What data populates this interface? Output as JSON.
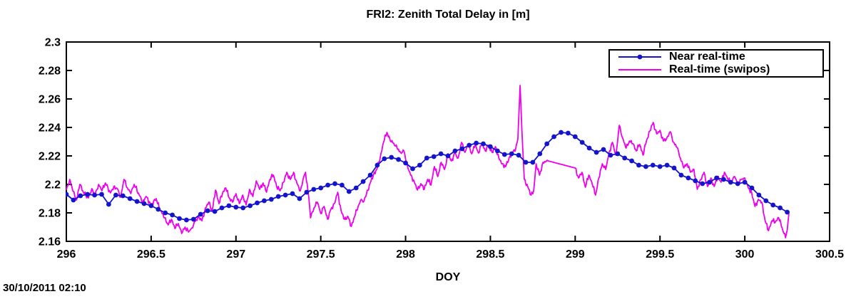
{
  "figure": {
    "background": "#ffffff",
    "axis_color": "#000000",
    "timestamp": "30/10/2011 02:10"
  },
  "chart_data": {
    "type": "line",
    "title": "FRI2: Zenith Total Delay in [m]",
    "xlabel": "DOY",
    "ylabel": "",
    "xlim": [
      296,
      300.5
    ],
    "ylim": [
      2.16,
      2.3
    ],
    "grid": false,
    "legend_position": "top-right",
    "xticks": {
      "values": [
        296,
        296.5,
        297,
        297.5,
        298,
        298.5,
        299,
        299.5,
        300,
        300.5
      ],
      "labels": [
        "296",
        "296.5",
        "297",
        "297.5",
        "298",
        "298.5",
        "299",
        "299.5",
        "300",
        "300.5"
      ]
    },
    "yticks": {
      "values": [
        2.16,
        2.18,
        2.2,
        2.22,
        2.24,
        2.26,
        2.28,
        2.3
      ],
      "labels": [
        "2.16",
        "2.18",
        "2.2",
        "2.22",
        "2.24",
        "2.26",
        "2.28",
        "2.3"
      ]
    },
    "series": [
      {
        "name": "Near real-time",
        "color": "#1414cc",
        "marker": "circle",
        "marker_radius": 3.4,
        "line_width": 1.8,
        "x_start": 296.0,
        "x_step": 0.0416667,
        "values": [
          2.193,
          2.189,
          2.192,
          2.193,
          2.1925,
          2.193,
          2.186,
          2.1925,
          2.192,
          2.19,
          2.188,
          2.1865,
          2.185,
          2.1825,
          2.18,
          2.1785,
          2.176,
          2.175,
          2.1755,
          2.179,
          2.1815,
          2.181,
          2.1835,
          2.185,
          2.184,
          2.1835,
          2.185,
          2.187,
          2.1885,
          2.1895,
          2.1915,
          2.1925,
          2.1935,
          2.19,
          2.1945,
          2.1965,
          2.1975,
          2.1995,
          2.2005,
          2.1995,
          2.195,
          2.1975,
          2.202,
          2.2065,
          2.2135,
          2.218,
          2.219,
          2.2175,
          2.215,
          2.211,
          2.2135,
          2.2185,
          2.2195,
          2.2215,
          2.22,
          2.2235,
          2.225,
          2.2275,
          2.229,
          2.2285,
          2.2265,
          2.2235,
          2.221,
          2.2215,
          2.2205,
          2.2155,
          2.2155,
          2.2215,
          2.2285,
          2.2335,
          2.2365,
          2.236,
          2.2335,
          2.2295,
          2.2255,
          2.2225,
          2.2245,
          2.2205,
          2.2215,
          2.2185,
          2.2165,
          2.2135,
          2.2125,
          2.2135,
          2.2125,
          2.2135,
          2.2115,
          2.2065,
          2.2045,
          2.2025,
          2.2005,
          2.2015,
          2.2045,
          2.2035,
          2.2015,
          2.2005,
          2.2015,
          2.1975,
          2.1925,
          2.1885,
          2.1855,
          2.1835,
          2.1805
        ]
      },
      {
        "name": "Real-time (swipos)",
        "color": "#ee00ee",
        "marker": "none",
        "line_width": 1.8,
        "noise": {
          "amplitude": 0.002,
          "f1": 480,
          "f2": 291,
          "phase2": 1.3,
          "step": 0.005,
          "min_seg": 0.012
        },
        "gap_segments": [
          [
            298.84,
            299.0
          ]
        ],
        "points": [
          [
            296.0,
            2.196
          ],
          [
            296.02,
            2.2035
          ],
          [
            296.04,
            2.195
          ],
          [
            296.06,
            2.189
          ],
          [
            296.08,
            2.2
          ],
          [
            296.1,
            2.1945
          ],
          [
            296.13,
            2.1905
          ],
          [
            296.15,
            2.197
          ],
          [
            296.17,
            2.1925
          ],
          [
            296.19,
            2.2
          ],
          [
            296.21,
            2.1955
          ],
          [
            296.23,
            2.201
          ],
          [
            296.26,
            2.194
          ],
          [
            296.28,
            2.1985
          ],
          [
            296.3,
            2.197
          ],
          [
            296.32,
            2.191
          ],
          [
            296.34,
            2.2035
          ],
          [
            296.36,
            2.1975
          ],
          [
            296.38,
            2.1935
          ],
          [
            296.4,
            2.2
          ],
          [
            296.43,
            2.1925
          ],
          [
            296.45,
            2.1875
          ],
          [
            296.47,
            2.1915
          ],
          [
            296.5,
            2.1855
          ],
          [
            296.53,
            2.19
          ],
          [
            296.55,
            2.1825
          ],
          [
            296.58,
            2.1765
          ],
          [
            296.6,
            2.1715
          ],
          [
            296.62,
            2.1755
          ],
          [
            296.64,
            2.169
          ],
          [
            296.66,
            2.1725
          ],
          [
            296.68,
            2.1655
          ],
          [
            296.7,
            2.17
          ],
          [
            296.72,
            2.1665
          ],
          [
            296.74,
            2.1695
          ],
          [
            296.76,
            2.174
          ],
          [
            296.78,
            2.1775
          ],
          [
            296.8,
            2.1745
          ],
          [
            296.82,
            2.1835
          ],
          [
            296.84,
            2.1875
          ],
          [
            296.86,
            2.1815
          ],
          [
            296.88,
            2.196
          ],
          [
            296.9,
            2.1865
          ],
          [
            296.92,
            2.1935
          ],
          [
            296.94,
            2.1975
          ],
          [
            296.96,
            2.1905
          ],
          [
            296.98,
            2.1875
          ],
          [
            297.0,
            2.1935
          ],
          [
            297.02,
            2.1865
          ],
          [
            297.04,
            2.1925
          ],
          [
            297.06,
            2.1855
          ],
          [
            297.08,
            2.1965
          ],
          [
            297.1,
            2.1915
          ],
          [
            297.12,
            2.2025
          ],
          [
            297.14,
            2.1965
          ],
          [
            297.16,
            2.201
          ],
          [
            297.18,
            2.1945
          ],
          [
            297.2,
            2.2035
          ],
          [
            297.22,
            2.2065
          ],
          [
            297.24,
            2.1985
          ],
          [
            297.26,
            2.1955
          ],
          [
            297.28,
            2.2015
          ],
          [
            297.3,
            2.2085
          ],
          [
            297.32,
            2.2035
          ],
          [
            297.34,
            2.2085
          ],
          [
            297.36,
            2.2005
          ],
          [
            297.38,
            2.1955
          ],
          [
            297.4,
            2.2055
          ],
          [
            297.41,
            2.2085
          ],
          [
            297.43,
            2.1905
          ],
          [
            297.44,
            2.1765
          ],
          [
            297.46,
            2.1835
          ],
          [
            297.48,
            2.1875
          ],
          [
            297.5,
            2.1795
          ],
          [
            297.52,
            2.1845
          ],
          [
            297.54,
            2.1755
          ],
          [
            297.56,
            2.1825
          ],
          [
            297.58,
            2.1865
          ],
          [
            297.6,
            2.1945
          ],
          [
            297.62,
            2.1815
          ],
          [
            297.64,
            2.1755
          ],
          [
            297.66,
            2.1775
          ],
          [
            297.68,
            2.1705
          ],
          [
            297.7,
            2.1775
          ],
          [
            297.72,
            2.1845
          ],
          [
            297.74,
            2.1895
          ],
          [
            297.75,
            2.1875
          ],
          [
            297.77,
            2.1935
          ],
          [
            297.79,
            2.2005
          ],
          [
            297.81,
            2.2065
          ],
          [
            297.83,
            2.2105
          ],
          [
            297.85,
            2.2185
          ],
          [
            297.87,
            2.2295
          ],
          [
            297.89,
            2.2365
          ],
          [
            297.91,
            2.2305
          ],
          [
            297.93,
            2.229
          ],
          [
            297.95,
            2.2255
          ],
          [
            297.97,
            2.2225
          ],
          [
            297.99,
            2.2235
          ],
          [
            298.01,
            2.2135
          ],
          [
            298.03,
            2.2065
          ],
          [
            298.05,
            2.2025
          ],
          [
            298.07,
            2.196
          ],
          [
            298.09,
            2.2005
          ],
          [
            298.11,
            2.1965
          ],
          [
            298.13,
            2.2035
          ],
          [
            298.15,
            2.1995
          ],
          [
            298.17,
            2.2125
          ],
          [
            298.19,
            2.2055
          ],
          [
            298.21,
            2.2155
          ],
          [
            298.23,
            2.2105
          ],
          [
            298.25,
            2.2215
          ],
          [
            298.27,
            2.2165
          ],
          [
            298.29,
            2.222
          ],
          [
            298.31,
            2.2185
          ],
          [
            298.33,
            2.2295
          ],
          [
            298.35,
            2.2225
          ],
          [
            298.37,
            2.2285
          ],
          [
            298.39,
            2.2215
          ],
          [
            298.41,
            2.2275
          ],
          [
            298.43,
            2.222
          ],
          [
            298.45,
            2.2285
          ],
          [
            298.47,
            2.2235
          ],
          [
            298.49,
            2.2275
          ],
          [
            298.51,
            2.2225
          ],
          [
            298.53,
            2.2265
          ],
          [
            298.55,
            2.2185
          ],
          [
            298.57,
            2.2145
          ],
          [
            298.59,
            2.2125
          ],
          [
            298.61,
            2.2185
          ],
          [
            298.63,
            2.2215
          ],
          [
            298.65,
            2.2255
          ],
          [
            298.662,
            2.232
          ],
          [
            298.675,
            2.2695
          ],
          [
            298.69,
            2.2275
          ],
          [
            298.7,
            2.2035
          ],
          [
            298.72,
            2.1985
          ],
          [
            298.74,
            2.1925
          ],
          [
            298.755,
            2.1955
          ],
          [
            298.77,
            2.2145
          ],
          [
            298.79,
            2.2065
          ],
          [
            298.81,
            2.2155
          ],
          [
            298.84,
            2.2165
          ],
          [
            299.0,
            2.2115
          ],
          [
            299.02,
            2.2045
          ],
          [
            299.04,
            2.2085
          ],
          [
            299.06,
            2.198
          ],
          [
            299.08,
            2.2065
          ],
          [
            299.1,
            2.2005
          ],
          [
            299.12,
            2.1925
          ],
          [
            299.14,
            2.2045
          ],
          [
            299.16,
            2.2145
          ],
          [
            299.18,
            2.2105
          ],
          [
            299.2,
            2.2225
          ],
          [
            299.22,
            2.2295
          ],
          [
            299.24,
            2.2205
          ],
          [
            299.26,
            2.2415
          ],
          [
            299.28,
            2.2325
          ],
          [
            299.3,
            2.2255
          ],
          [
            299.32,
            2.2305
          ],
          [
            299.34,
            2.2285
          ],
          [
            299.36,
            2.2235
          ],
          [
            299.38,
            2.228
          ],
          [
            299.4,
            2.2205
          ],
          [
            299.42,
            2.2305
          ],
          [
            299.44,
            2.2375
          ],
          [
            299.46,
            2.2435
          ],
          [
            299.48,
            2.2355
          ],
          [
            299.5,
            2.238
          ],
          [
            299.52,
            2.2305
          ],
          [
            299.54,
            2.2325
          ],
          [
            299.56,
            2.237
          ],
          [
            299.58,
            2.2295
          ],
          [
            299.6,
            2.226
          ],
          [
            299.62,
            2.2185
          ],
          [
            299.64,
            2.2115
          ],
          [
            299.66,
            2.2145
          ],
          [
            299.68,
            2.2085
          ],
          [
            299.7,
            2.2105
          ],
          [
            299.72,
            2.1965
          ],
          [
            299.74,
            2.2035
          ],
          [
            299.76,
            2.2085
          ],
          [
            299.78,
            2.1985
          ],
          [
            299.8,
            2.2045
          ],
          [
            299.82,
            2.1985
          ],
          [
            299.84,
            2.2055
          ],
          [
            299.86,
            2.2015
          ],
          [
            299.88,
            2.2085
          ],
          [
            299.9,
            2.2035
          ],
          [
            299.92,
            2.2015
          ],
          [
            299.94,
            2.2055
          ],
          [
            299.96,
            2.1995
          ],
          [
            299.98,
            2.2035
          ],
          [
            300.0,
            2.2045
          ],
          [
            300.02,
            2.1975
          ],
          [
            300.04,
            2.1945
          ],
          [
            300.06,
            2.1845
          ],
          [
            300.08,
            2.1895
          ],
          [
            300.1,
            2.1875
          ],
          [
            300.12,
            2.1745
          ],
          [
            300.14,
            2.1675
          ],
          [
            300.16,
            2.1745
          ],
          [
            300.18,
            2.1735
          ],
          [
            300.2,
            2.1765
          ],
          [
            300.22,
            2.1695
          ],
          [
            300.24,
            2.1625
          ],
          [
            300.25,
            2.168
          ],
          [
            300.26,
            2.1795
          ]
        ]
      }
    ]
  }
}
